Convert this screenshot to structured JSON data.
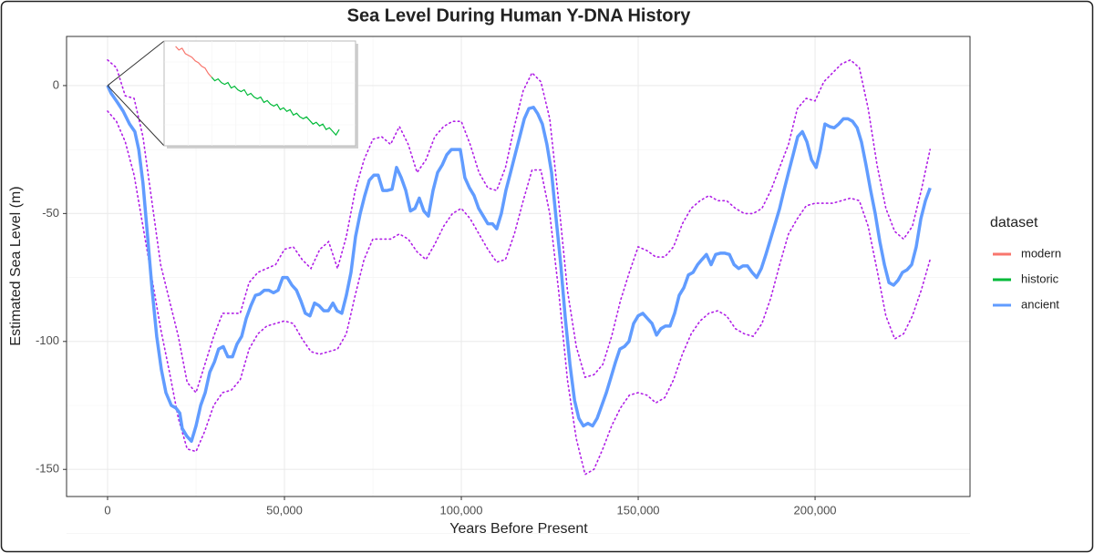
{
  "chart_data": {
    "type": "line",
    "title": "Sea Level During Human Y-DNA History",
    "x_label": "Years Before Present",
    "y_label": "Estimated Sea Level (m)",
    "xlim": [
      -11600,
      243800
    ],
    "ylim": [
      -160.6,
      19.2
    ],
    "xticks": [
      0,
      {
        "value": 50000,
        "label": "50,000"
      },
      {
        "value": 100000,
        "label": "100,000"
      },
      {
        "value": 150000,
        "label": "150,000"
      },
      {
        "value": 200000,
        "label": "200,000"
      }
    ],
    "yticks": [
      0,
      -50,
      -100,
      -150
    ],
    "grid": true,
    "minor_grid": true,
    "legend": {
      "title": "dataset",
      "position": "right"
    },
    "x": [
      0,
      1000,
      2500,
      4400,
      6200,
      7700,
      8800,
      10000,
      11300,
      12600,
      13900,
      15200,
      16500,
      18000,
      19300,
      20400,
      21100,
      22400,
      23700,
      25000,
      26300,
      27600,
      28900,
      30200,
      31400,
      32700,
      34000,
      35300,
      36600,
      37900,
      39200,
      40500,
      41800,
      43000,
      44300,
      45600,
      46900,
      48200,
      49500,
      50800,
      52100,
      53400,
      54600,
      55900,
      57200,
      58500,
      59800,
      61100,
      62400,
      63700,
      64900,
      66200,
      67500,
      68800,
      70100,
      71400,
      72700,
      74000,
      75300,
      76500,
      77800,
      79100,
      80400,
      81700,
      83000,
      84300,
      85600,
      86900,
      88100,
      89400,
      90700,
      92000,
      93300,
      94600,
      95900,
      97200,
      98500,
      99700,
      101000,
      102300,
      103600,
      104900,
      106200,
      107500,
      108800,
      110000,
      111300,
      112600,
      113900,
      115200,
      116500,
      117800,
      119100,
      120400,
      121600,
      122900,
      124200,
      125500,
      126800,
      128100,
      129400,
      130700,
      132000,
      133200,
      134500,
      135800,
      137100,
      138400,
      139700,
      141000,
      142300,
      143600,
      144800,
      146100,
      147400,
      148700,
      150000,
      151300,
      152600,
      153900,
      155200,
      156400,
      157700,
      159000,
      160300,
      161600,
      162900,
      164200,
      165500,
      166800,
      168000,
      169300,
      170600,
      171900,
      173200,
      174500,
      175800,
      177100,
      178400,
      179600,
      180900,
      182200,
      183500,
      184800,
      186100,
      187400,
      188700,
      190000,
      191200,
      192500,
      193800,
      195100,
      196400,
      197700,
      199000,
      200300,
      201500,
      202800,
      204100,
      205400,
      206700,
      208000,
      209300,
      210600,
      211900,
      213100,
      214400,
      215700,
      217000,
      218300,
      219600,
      220900,
      222200,
      223500,
      224700,
      226000,
      227300,
      228600,
      229900,
      231200,
      232500
    ],
    "series": [
      {
        "name": "ancient",
        "color": "#619CFF",
        "values": [
          0,
          -3,
          -6,
          -10,
          -15,
          -18,
          -25,
          -38,
          -59,
          -80,
          -98,
          -111,
          -120,
          -125,
          -126,
          -128,
          -134,
          -137,
          -139,
          -133,
          -125,
          -120,
          -112,
          -108,
          -103,
          -102,
          -106,
          -106,
          -101,
          -98,
          -91,
          -86,
          -82,
          -81.5,
          -80,
          -80,
          -81,
          -80,
          -75,
          -75,
          -78,
          -80,
          -84,
          -89,
          -90,
          -85,
          -86,
          -88,
          -88,
          -85,
          -88,
          -89,
          -82,
          -73,
          -59,
          -50,
          -43,
          -37,
          -35,
          -35,
          -41,
          -41,
          -40.5,
          -32,
          -36,
          -41,
          -49,
          -48,
          -44,
          -49,
          -51,
          -41,
          -34,
          -31,
          -27,
          -25,
          -25,
          -25,
          -36,
          -40,
          -43,
          -48,
          -51,
          -54,
          -54,
          -56,
          -50,
          -41,
          -34,
          -27,
          -20,
          -13,
          -9,
          -8.5,
          -11,
          -15,
          -23,
          -34,
          -52,
          -70,
          -91,
          -109,
          -123,
          -130,
          -133,
          -132,
          -133,
          -130,
          -125,
          -120,
          -114,
          -108,
          -103,
          -102,
          -100,
          -93,
          -90,
          -89,
          -91,
          -93,
          -97.5,
          -95,
          -94,
          -94,
          -89,
          -82,
          -79,
          -74,
          -73,
          -70,
          -68,
          -66,
          -70,
          -66,
          -65.5,
          -65.5,
          -66,
          -70,
          -71.5,
          -70.5,
          -70.5,
          -73,
          -75,
          -71.5,
          -66,
          -60,
          -54,
          -48,
          -41,
          -34,
          -27,
          -20,
          -18,
          -22,
          -29,
          -32,
          -25,
          -15,
          -16,
          -16.5,
          -15,
          -13,
          -13,
          -14,
          -16.5,
          -22,
          -31,
          -41,
          -50,
          -61,
          -70,
          -77,
          -78,
          -76,
          -73,
          -72,
          -70,
          -63,
          -52,
          -45,
          -40
        ]
      }
    ],
    "interval": {
      "color": "#B01EE6",
      "x": [
        0,
        2500,
        5000,
        7500,
        10000,
        12500,
        15000,
        17500,
        20000,
        22500,
        25000,
        27500,
        30000,
        32500,
        35000,
        37500,
        40000,
        42500,
        45000,
        47500,
        50000,
        52500,
        55000,
        57500,
        60000,
        62500,
        65000,
        67500,
        70000,
        72500,
        75000,
        77500,
        80000,
        82500,
        85000,
        87500,
        90000,
        92500,
        95000,
        97500,
        100000,
        102500,
        105000,
        107500,
        110000,
        112500,
        115000,
        117500,
        120000,
        122500,
        125000,
        127500,
        130000,
        132500,
        135000,
        137500,
        140000,
        142500,
        145000,
        147500,
        150000,
        152500,
        155000,
        157500,
        160000,
        162500,
        165000,
        167500,
        170000,
        172500,
        175000,
        177500,
        180000,
        182500,
        185000,
        187500,
        190000,
        192500,
        195000,
        197500,
        200000,
        202500,
        205000,
        207500,
        210000,
        212500,
        215000,
        217500,
        220000,
        222500,
        225000,
        227500,
        230000,
        232500
      ],
      "upper": [
        10,
        7,
        -4,
        -5,
        -20,
        -45,
        -70,
        -84,
        -98,
        -116,
        -120,
        -109,
        -98,
        -89,
        -89,
        -89,
        -77,
        -73,
        -71.5,
        -70,
        -64,
        -63,
        -68,
        -71.5,
        -64,
        -61,
        -71.5,
        -59,
        -41,
        -29,
        -21,
        -20,
        -23,
        -16,
        -23,
        -34,
        -29,
        -20,
        -16,
        -14,
        -14,
        -23,
        -34,
        -40,
        -41,
        -32,
        -16,
        -2,
        5,
        1.5,
        -13,
        -45,
        -80,
        -102,
        -114,
        -113,
        -109,
        -98,
        -84,
        -73,
        -63,
        -64.5,
        -67,
        -67,
        -63,
        -54,
        -48,
        -45,
        -43,
        -45,
        -45,
        -48,
        -50,
        -50,
        -48,
        -41,
        -32,
        -23,
        -9,
        -5,
        -6,
        1.5,
        5,
        8.5,
        10,
        7,
        -9,
        -31,
        -48,
        -57,
        -60,
        -55,
        -41,
        -25
      ],
      "lower": [
        -10,
        -14,
        -22,
        -35,
        -55,
        -75,
        -95,
        -112,
        -130,
        -142,
        -143,
        -135,
        -125,
        -120,
        -119,
        -115,
        -103,
        -97,
        -94,
        -93,
        -92,
        -93,
        -99,
        -104,
        -105,
        -104,
        -103,
        -97,
        -82,
        -68,
        -60,
        -60,
        -60,
        -58,
        -60,
        -65,
        -68,
        -62,
        -55,
        -50,
        -48,
        -52,
        -58,
        -64,
        -69,
        -68,
        -58,
        -45,
        -33,
        -33,
        -50,
        -80,
        -115,
        -138,
        -152,
        -150,
        -142,
        -133,
        -126,
        -121,
        -120,
        -121,
        -124,
        -122,
        -115,
        -105,
        -97,
        -92,
        -89,
        -88,
        -90,
        -95,
        -97,
        -98,
        -93,
        -83,
        -70,
        -58,
        -52,
        -47,
        -46,
        -46,
        -46,
        -45,
        -44,
        -45,
        -55,
        -72,
        -90,
        -99,
        -97,
        -90,
        -80,
        -68
      ]
    },
    "inset": {
      "xlim": [
        -7,
        110
      ],
      "ylim": [
        -55,
        3
      ],
      "series": [
        {
          "name": "modern",
          "color": "#F8766D",
          "x": [
            0,
            2,
            4,
            6,
            8,
            10,
            12,
            14,
            16,
            18,
            20,
            22
          ],
          "values": [
            0,
            -2,
            -1,
            -4,
            -5,
            -6,
            -8,
            -9,
            -11,
            -12,
            -15,
            -17
          ]
        },
        {
          "name": "historic",
          "color": "#00BA38",
          "x": [
            22,
            24,
            26,
            28,
            30,
            32,
            34,
            36,
            38,
            40,
            42,
            44,
            46,
            48,
            50,
            52,
            54,
            56,
            58,
            60,
            62,
            64,
            66,
            68,
            70,
            72,
            74,
            76,
            78,
            80,
            82,
            84,
            86,
            88,
            90,
            92,
            94,
            96,
            98,
            100
          ],
          "values": [
            -17,
            -19,
            -18,
            -20,
            -21,
            -20,
            -23,
            -22,
            -24,
            -25,
            -24,
            -27,
            -26,
            -28,
            -29,
            -28,
            -31,
            -30,
            -32,
            -33,
            -32,
            -35,
            -34,
            -36,
            -35,
            -38,
            -37,
            -39,
            -40,
            -39,
            -41,
            -43,
            -42,
            -44,
            -43,
            -46,
            -45,
            -47,
            -49,
            -46
          ]
        }
      ]
    }
  }
}
